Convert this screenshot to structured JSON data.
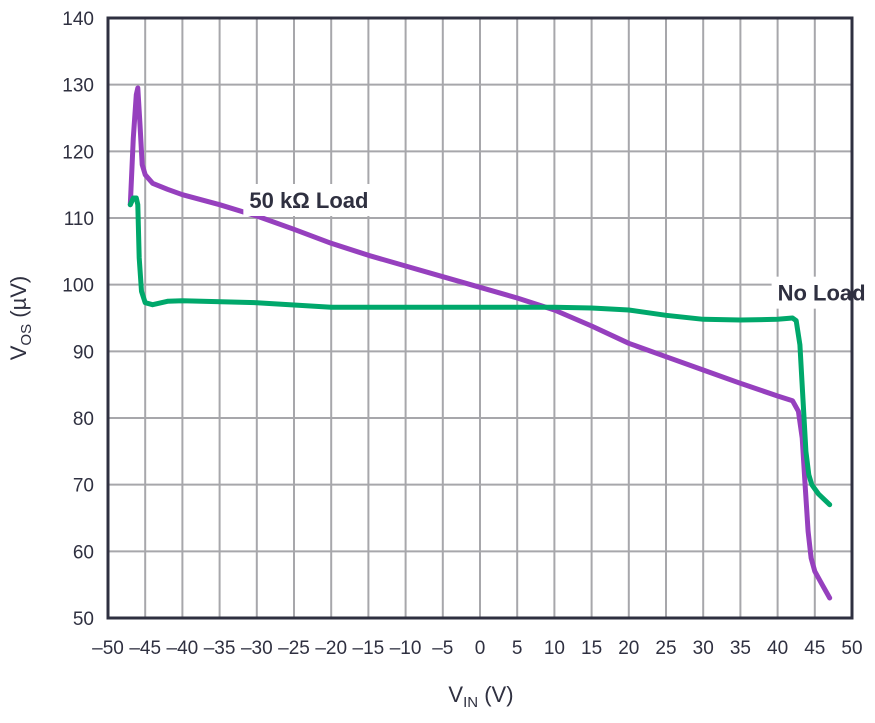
{
  "chart_data": {
    "type": "line",
    "title": "",
    "xlabel": {
      "main": "V",
      "sub": "IN",
      "unit": " (V)"
    },
    "ylabel": {
      "main": "V",
      "sub": "OS",
      "unit": " (µV)"
    },
    "xlim": [
      -50,
      50
    ],
    "ylim": [
      50,
      140
    ],
    "xticks": [
      -50,
      -45,
      -40,
      -35,
      -30,
      -25,
      -20,
      -15,
      -10,
      -5,
      0,
      5,
      10,
      15,
      20,
      25,
      30,
      35,
      40,
      45,
      50
    ],
    "xtick_labels": [
      "–50",
      "–45",
      "–40",
      "–35",
      "–30",
      "–25",
      "–20",
      "–15",
      "–10",
      "–5",
      "0",
      "5",
      "10",
      "15",
      "20",
      "25",
      "30",
      "35",
      "40",
      "45",
      "50"
    ],
    "yticks": [
      50,
      60,
      70,
      80,
      90,
      100,
      110,
      120,
      130,
      140
    ],
    "ytick_labels": [
      "50",
      "60",
      "70",
      "80",
      "90",
      "100",
      "110",
      "120",
      "130",
      "140"
    ],
    "grid": true,
    "series": [
      {
        "name": "50 kΩ Load",
        "color": "#9640be",
        "label_at": [
          -31,
          111.5
        ],
        "x": [
          -47,
          -46.6,
          -46.2,
          -46,
          -45.7,
          -45.4,
          -45,
          -44,
          -42,
          -40,
          -35,
          -30,
          -25,
          -20,
          -15,
          -10,
          -5,
          0,
          5,
          10,
          15,
          20,
          25,
          30,
          35,
          40,
          42,
          42.8,
          43.3,
          43.7,
          44.1,
          44.5,
          45,
          46,
          47
        ],
        "y": [
          112,
          122,
          128.5,
          129.5,
          124,
          118,
          116.5,
          115.2,
          114.3,
          113.5,
          112,
          110.3,
          108.3,
          106.2,
          104.4,
          102.8,
          101.2,
          99.6,
          98,
          96.2,
          93.8,
          91.2,
          89.2,
          87.2,
          85.2,
          83.3,
          82.6,
          81,
          77,
          70,
          63,
          59,
          57,
          55,
          53
        ]
      },
      {
        "name": "No Load",
        "color": "#00a86b",
        "label_at": [
          40,
          97.6
        ],
        "x": [
          -47,
          -46.6,
          -46.2,
          -46,
          -45.8,
          -45.5,
          -45,
          -44,
          -42,
          -40,
          -30,
          -20,
          -10,
          0,
          10,
          15,
          20,
          25,
          30,
          35,
          40,
          42,
          42.5,
          43,
          43.4,
          43.8,
          44.2,
          44.6,
          45.5,
          47
        ],
        "y": [
          112,
          113,
          113,
          112,
          104,
          99,
          97.3,
          97,
          97.5,
          97.6,
          97.3,
          96.6,
          96.6,
          96.6,
          96.6,
          96.5,
          96.2,
          95.4,
          94.8,
          94.7,
          94.8,
          95,
          94.6,
          91,
          83,
          75,
          71.5,
          70,
          68.6,
          67
        ]
      }
    ]
  }
}
